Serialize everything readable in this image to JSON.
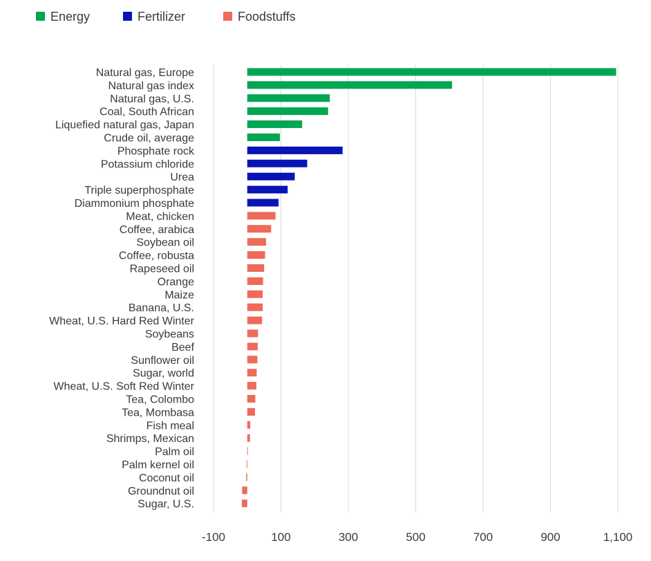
{
  "chart_data": {
    "type": "bar",
    "orientation": "horizontal",
    "legend": {
      "placement": "top-left",
      "items": [
        {
          "name": "Energy",
          "color": "#00A651"
        },
        {
          "name": "Fertilizer",
          "color": "#0A14B4"
        },
        {
          "name": "Foodstuffs",
          "color": "#EE6A5A"
        }
      ]
    },
    "xlim": [
      -100,
      1100
    ],
    "x_ticks": [
      -100,
      100,
      300,
      500,
      700,
      900,
      1100
    ],
    "x_tick_labels": [
      "-100",
      "100",
      "300",
      "500",
      "700",
      "900",
      "1,100"
    ],
    "grid": "vertical",
    "bars": [
      {
        "label": "Natural gas, Europe",
        "value": 1095,
        "group": "Energy"
      },
      {
        "label": "Natural gas index",
        "value": 608,
        "group": "Energy"
      },
      {
        "label": "Natural gas, U.S.",
        "value": 245,
        "group": "Energy"
      },
      {
        "label": "Coal, South African",
        "value": 240,
        "group": "Energy"
      },
      {
        "label": "Liquefied natural gas, Japan",
        "value": 163,
        "group": "Energy"
      },
      {
        "label": "Crude oil, average",
        "value": 97,
        "group": "Energy"
      },
      {
        "label": "Phosphate rock",
        "value": 283,
        "group": "Fertilizer"
      },
      {
        "label": "Potassium chloride",
        "value": 178,
        "group": "Fertilizer"
      },
      {
        "label": "Urea",
        "value": 141,
        "group": "Fertilizer"
      },
      {
        "label": "Triple superphosphate",
        "value": 120,
        "group": "Fertilizer"
      },
      {
        "label": "Diammonium phosphate",
        "value": 93,
        "group": "Fertilizer"
      },
      {
        "label": "Meat, chicken",
        "value": 84,
        "group": "Foodstuffs"
      },
      {
        "label": "Coffee, arabica",
        "value": 71,
        "group": "Foodstuffs"
      },
      {
        "label": "Soybean oil",
        "value": 56,
        "group": "Foodstuffs"
      },
      {
        "label": "Coffee, robusta",
        "value": 53,
        "group": "Foodstuffs"
      },
      {
        "label": "Rapeseed oil",
        "value": 50,
        "group": "Foodstuffs"
      },
      {
        "label": "Orange",
        "value": 47,
        "group": "Foodstuffs"
      },
      {
        "label": "Maize",
        "value": 46,
        "group": "Foodstuffs"
      },
      {
        "label": "Banana, U.S.",
        "value": 46,
        "group": "Foodstuffs"
      },
      {
        "label": "Wheat, U.S. Hard Red Winter",
        "value": 44,
        "group": "Foodstuffs"
      },
      {
        "label": "Soybeans",
        "value": 32,
        "group": "Foodstuffs"
      },
      {
        "label": "Beef",
        "value": 31,
        "group": "Foodstuffs"
      },
      {
        "label": "Sunflower oil",
        "value": 30,
        "group": "Foodstuffs"
      },
      {
        "label": "Sugar, world",
        "value": 28,
        "group": "Foodstuffs"
      },
      {
        "label": "Wheat, U.S. Soft Red Winter",
        "value": 27,
        "group": "Foodstuffs"
      },
      {
        "label": "Tea, Colombo",
        "value": 24,
        "group": "Foodstuffs"
      },
      {
        "label": "Tea, Mombasa",
        "value": 23,
        "group": "Foodstuffs"
      },
      {
        "label": "Fish meal",
        "value": 9,
        "group": "Foodstuffs"
      },
      {
        "label": "Shrimps, Mexican",
        "value": 8,
        "group": "Foodstuffs"
      },
      {
        "label": "Palm oil",
        "value": 1,
        "group": "Foodstuffs"
      },
      {
        "label": "Palm kernel oil",
        "value": -2,
        "group": "Foodstuffs"
      },
      {
        "label": "Coconut oil",
        "value": -3,
        "group": "Foodstuffs"
      },
      {
        "label": "Groundnut oil",
        "value": -15,
        "group": "Foodstuffs"
      },
      {
        "label": "Sugar, U.S.",
        "value": -16,
        "group": "Foodstuffs"
      }
    ]
  }
}
